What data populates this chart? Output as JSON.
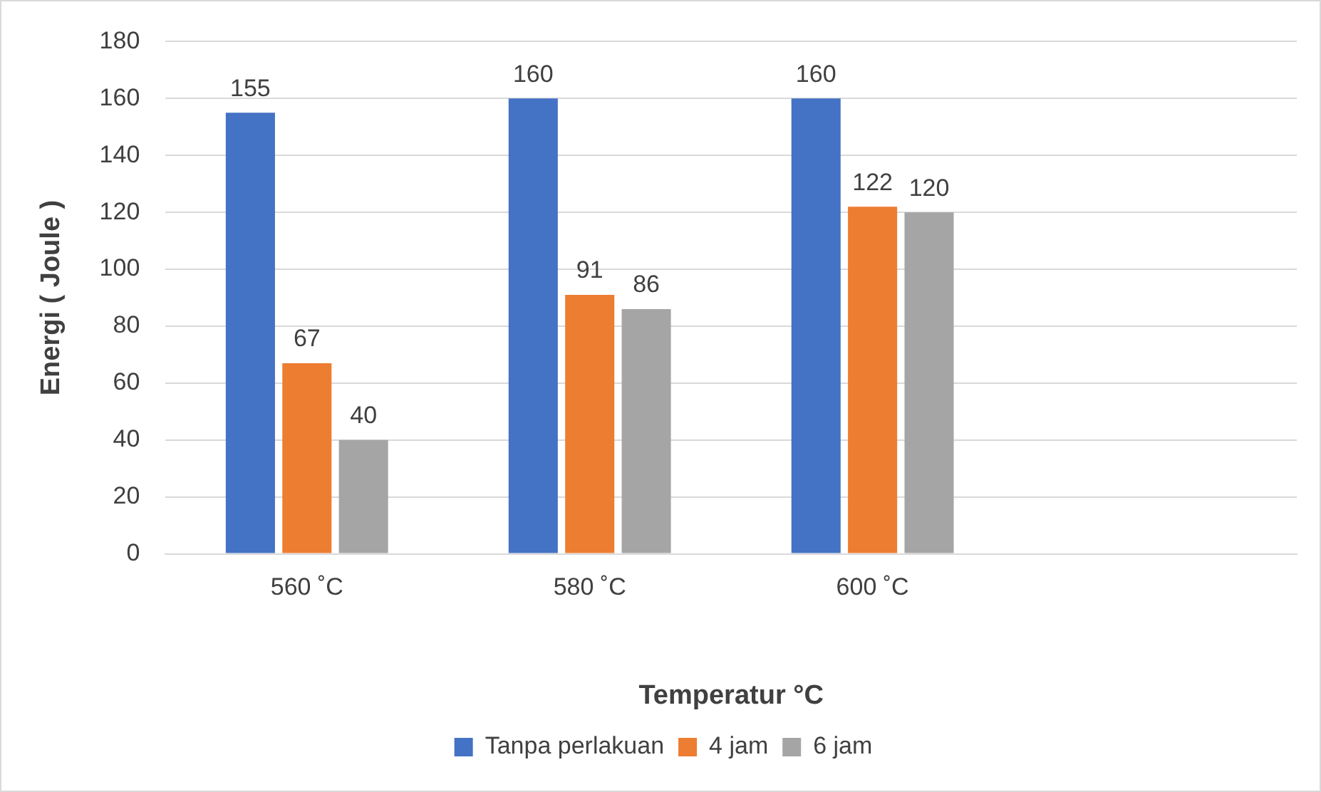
{
  "chart_data": {
    "type": "bar",
    "categories": [
      "560 ˚C",
      "580 ˚C",
      "600 ˚C",
      null
    ],
    "series": [
      {
        "name": "Tanpa perlakuan",
        "color": "#4472c4",
        "values": [
          155,
          160,
          160,
          null
        ]
      },
      {
        "name": "4 jam",
        "color": "#ed7d31",
        "values": [
          67,
          91,
          122,
          null
        ]
      },
      {
        "name": "6 jam",
        "color": "#a5a5a5",
        "values": [
          40,
          86,
          120,
          null
        ]
      }
    ],
    "xlabel": "Temperatur °C",
    "ylabel": "Energi ( Joule )",
    "ylim": [
      0,
      180
    ],
    "yticks": [
      0,
      20,
      40,
      60,
      80,
      100,
      120,
      140,
      160,
      180
    ],
    "grid": "y",
    "legend": "bottom",
    "data_labels": true
  }
}
